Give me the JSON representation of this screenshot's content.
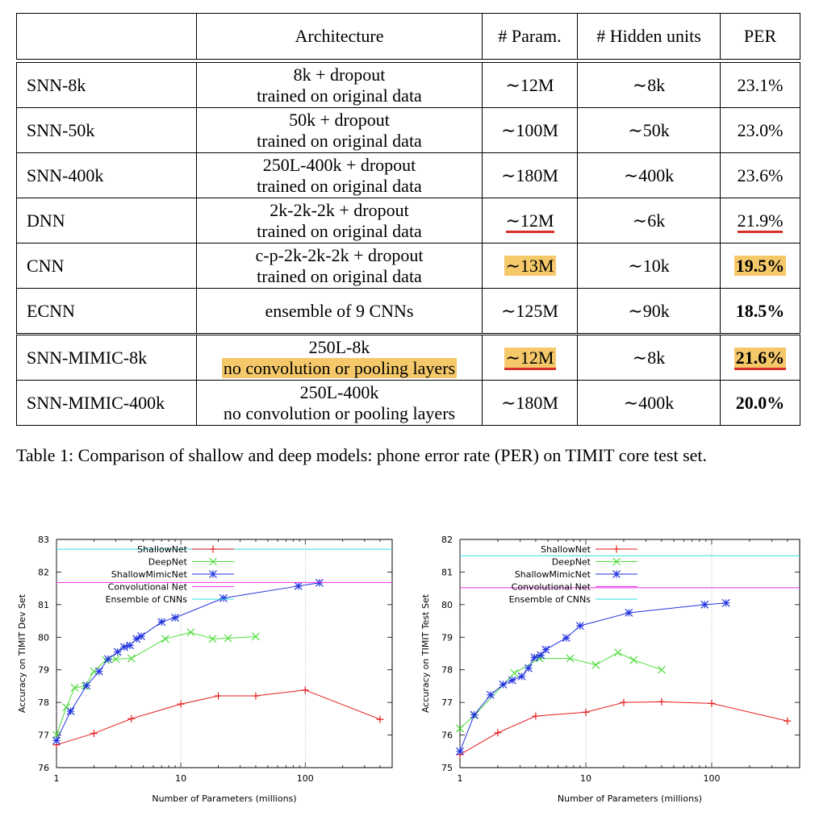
{
  "table": {
    "headers": [
      "",
      "Architecture",
      "# Param.",
      "# Hidden units",
      "PER"
    ],
    "rows": [
      {
        "name": "SNN-8k",
        "arch1": "8k + dropout",
        "arch2": "trained on original data",
        "params": "∼12M",
        "hidden": "∼8k",
        "per": "23.1%"
      },
      {
        "name": "SNN-50k",
        "arch1": "50k + dropout",
        "arch2": "trained on original data",
        "params": "∼100M",
        "hidden": "∼50k",
        "per": "23.0%"
      },
      {
        "name": "SNN-400k",
        "arch1": "250L-400k + dropout",
        "arch2": "trained on original data",
        "params": "∼180M",
        "hidden": "∼400k",
        "per": "23.6%"
      },
      {
        "name": "DNN",
        "arch1": "2k-2k-2k + dropout",
        "arch2": "trained on original data",
        "params": "∼12M",
        "hidden": "∼6k",
        "per": "21.9%"
      },
      {
        "name": "CNN",
        "arch1": "c-p-2k-2k-2k + dropout",
        "arch2": "trained on original data",
        "params": "∼13M",
        "hidden": "∼10k",
        "per": "19.5%"
      },
      {
        "name": "ECNN",
        "arch1": "ensemble of 9 CNNs",
        "params": "∼125M",
        "hidden": "∼90k",
        "per": "18.5%"
      }
    ],
    "mimic_rows": [
      {
        "name": "SNN-MIMIC-8k",
        "arch1": "250L-8k",
        "arch2": "no convolution or pooling layers",
        "params": "∼12M",
        "hidden": "∼8k",
        "per": "21.6%"
      },
      {
        "name": "SNN-MIMIC-400k",
        "arch1": "250L-400k",
        "arch2": "no convolution or pooling layers",
        "params": "∼180M",
        "hidden": "∼400k",
        "per": "20.0%"
      }
    ],
    "highlight_color": "#f5c96a",
    "underline_color": "#d8302a"
  },
  "caption": "Table 1: Comparison of shallow and deep models: phone error rate (PER) on TIMIT core test set.",
  "chart_data": [
    {
      "type": "line",
      "xlabel": "Number of Parameters (millions)",
      "ylabel": "Accuracy on TIMIT Dev Set",
      "xscale": "log",
      "xlim": [
        1,
        500
      ],
      "ylim": [
        76,
        83
      ],
      "xticks": [
        1,
        10,
        100
      ],
      "yticks": [
        76,
        77,
        78,
        79,
        80,
        81,
        82,
        83
      ],
      "legend_position": "top-left",
      "series": [
        {
          "name": "ShallowNet",
          "color": "#e41a1c",
          "marker": "+",
          "x": [
            1,
            2,
            4,
            10,
            20,
            40,
            100,
            400
          ],
          "y": [
            76.7,
            77.05,
            77.5,
            77.95,
            78.2,
            78.2,
            78.38,
            77.48
          ]
        },
        {
          "name": "DeepNet",
          "color": "#4ddd3a",
          "marker": "x",
          "x": [
            1,
            1.2,
            1.4,
            1.7,
            2,
            2.5,
            3,
            4,
            7.5,
            12,
            18,
            24,
            40
          ],
          "y": [
            77.0,
            77.85,
            78.45,
            78.5,
            78.95,
            79.3,
            79.33,
            79.35,
            79.95,
            80.15,
            79.95,
            79.97,
            80.02
          ]
        },
        {
          "name": "ShallowMimicNet",
          "color": "#2233dd",
          "marker": "*",
          "x": [
            1,
            1.3,
            1.75,
            2.2,
            2.6,
            3.1,
            3.5,
            3.9,
            4.4,
            4.8,
            7,
            9,
            22,
            88,
            130
          ],
          "y": [
            76.83,
            77.73,
            78.52,
            78.95,
            79.33,
            79.55,
            79.7,
            79.75,
            79.95,
            80.03,
            80.47,
            80.6,
            81.2,
            81.57,
            81.67
          ]
        },
        {
          "name": "Convolutional Net",
          "color": "#ee33ee",
          "marker": "",
          "constant": 81.68
        },
        {
          "name": "Ensemble of CNNs",
          "color": "#33dddd",
          "marker": "",
          "constant": 82.7
        }
      ]
    },
    {
      "type": "line",
      "xlabel": "Number of Parameters (millions)",
      "ylabel": "Accuracy on TIMIT Test Set",
      "xscale": "log",
      "xlim": [
        1,
        500
      ],
      "ylim": [
        75,
        82
      ],
      "xticks": [
        1,
        10,
        100
      ],
      "yticks": [
        75,
        76,
        77,
        78,
        79,
        80,
        81,
        82
      ],
      "legend_position": "top-left",
      "series": [
        {
          "name": "ShallowNet",
          "color": "#e41a1c",
          "marker": "+",
          "x": [
            1,
            2,
            4,
            10,
            20,
            40,
            100,
            400
          ],
          "y": [
            75.4,
            76.07,
            76.58,
            76.7,
            77.0,
            77.02,
            76.97,
            76.43
          ]
        },
        {
          "name": "DeepNet",
          "color": "#4ddd3a",
          "marker": "x",
          "x": [
            1,
            1.3,
            2.7,
            4.3,
            7.5,
            12,
            18,
            24,
            40
          ],
          "y": [
            76.2,
            76.6,
            77.9,
            78.35,
            78.35,
            78.15,
            78.53,
            78.3,
            78.0
          ]
        },
        {
          "name": "ShallowMimicNet",
          "color": "#2233dd",
          "marker": "*",
          "x": [
            1,
            1.3,
            1.75,
            2.2,
            2.6,
            3.1,
            3.5,
            3.9,
            4.4,
            4.8,
            7,
            9,
            22,
            88,
            130
          ],
          "y": [
            75.5,
            76.62,
            77.23,
            77.55,
            77.68,
            77.8,
            78.05,
            78.38,
            78.45,
            78.62,
            78.98,
            79.35,
            79.75,
            80.0,
            80.05
          ]
        },
        {
          "name": "Convolutional Net",
          "color": "#ee33ee",
          "marker": "",
          "constant": 80.52
        },
        {
          "name": "Ensemble of CNNs",
          "color": "#33dddd",
          "marker": "",
          "constant": 81.5
        }
      ]
    }
  ]
}
